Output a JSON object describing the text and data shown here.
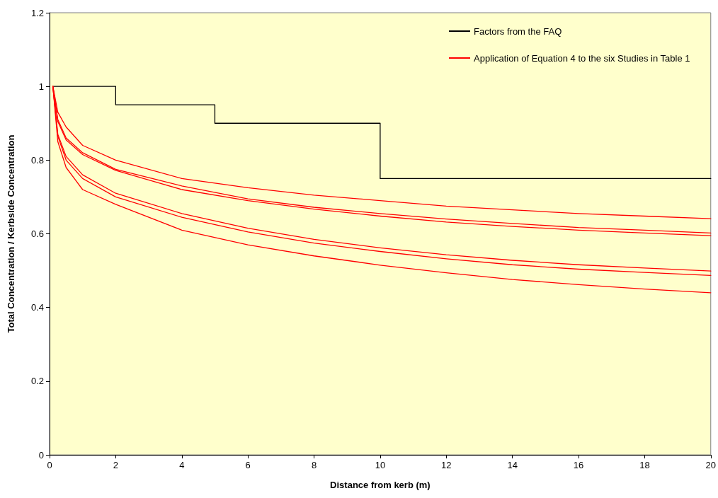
{
  "chart_data": {
    "type": "line",
    "xlabel": "Distance from kerb (m)",
    "ylabel": "Total Concentration / Kerbside Concentration",
    "xlim": [
      0,
      20
    ],
    "xticks": [
      0,
      2,
      4,
      6,
      8,
      10,
      12,
      14,
      16,
      18,
      20
    ],
    "ylim": [
      0,
      1.2
    ],
    "yticks": [
      0,
      0.2,
      0.4,
      0.6,
      0.8,
      1,
      1.2
    ],
    "grid": false,
    "legend": "top right",
    "marker": "none",
    "series": [
      {
        "name": "Factors from the FAQ",
        "type": "step",
        "color": "#000000",
        "x": [
          0.1,
          2,
          5,
          10,
          20
        ],
        "values": [
          1,
          0.95,
          0.9,
          0.75,
          0.75
        ]
      },
      {
        "name": "Application of Equation 4 to the six Studies in Table 1",
        "color": "#ff0000",
        "x": [
          0.1,
          0.25,
          0.5,
          1,
          2,
          4,
          6,
          8,
          10,
          12,
          14,
          16,
          18,
          20
        ],
        "values": [
          1,
          0.93,
          0.89,
          0.84,
          0.8,
          0.75,
          0.725,
          0.705,
          0.69,
          0.675,
          0.665,
          0.655,
          0.648,
          0.641
        ]
      },
      {
        "color": "#ff0000",
        "x": [
          0.1,
          0.25,
          0.5,
          1,
          2,
          4,
          6,
          8,
          10,
          12,
          14,
          16,
          18,
          20
        ],
        "values": [
          1,
          0.91,
          0.86,
          0.82,
          0.775,
          0.73,
          0.695,
          0.672,
          0.655,
          0.64,
          0.628,
          0.617,
          0.61,
          0.602
        ]
      },
      {
        "color": "#ff0000",
        "x": [
          0.1,
          0.25,
          0.5,
          1,
          2,
          4,
          6,
          8,
          10,
          12,
          14,
          16,
          18,
          20
        ],
        "values": [
          1,
          0.905,
          0.855,
          0.815,
          0.772,
          0.72,
          0.69,
          0.667,
          0.648,
          0.632,
          0.62,
          0.61,
          0.602,
          0.595
        ]
      },
      {
        "color": "#ff0000",
        "x": [
          0.1,
          0.25,
          0.5,
          1,
          2,
          4,
          6,
          8,
          10,
          12,
          14,
          16,
          18,
          20
        ],
        "values": [
          1,
          0.87,
          0.81,
          0.76,
          0.71,
          0.655,
          0.615,
          0.585,
          0.562,
          0.543,
          0.528,
          0.516,
          0.507,
          0.499
        ]
      },
      {
        "color": "#ff0000",
        "x": [
          0.1,
          0.25,
          0.5,
          1,
          2,
          4,
          6,
          8,
          10,
          12,
          14,
          16,
          18,
          20
        ],
        "values": [
          1,
          0.865,
          0.8,
          0.75,
          0.7,
          0.645,
          0.605,
          0.575,
          0.552,
          0.532,
          0.516,
          0.504,
          0.495,
          0.487
        ]
      },
      {
        "color": "#ff0000",
        "x": [
          0.1,
          0.25,
          0.5,
          1,
          2,
          4,
          6,
          8,
          10,
          12,
          14,
          16,
          18,
          20
        ],
        "values": [
          1,
          0.85,
          0.78,
          0.72,
          0.68,
          0.61,
          0.57,
          0.54,
          0.515,
          0.494,
          0.476,
          0.462,
          0.45,
          0.44
        ]
      }
    ]
  }
}
